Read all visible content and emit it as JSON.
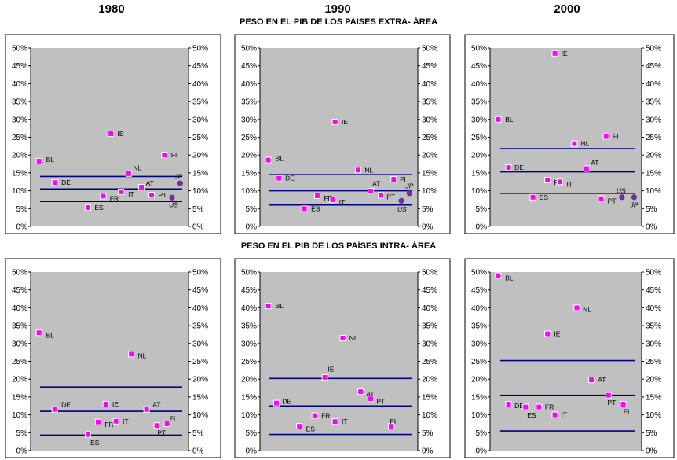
{
  "years": [
    "1980",
    "1990",
    "2000"
  ],
  "row_titles": [
    "PESO EN EL PIB DE LOS PAISES EXTRA- ÁREA",
    "PESO EN EL PIB DE LOS PAÍSES INTRA- ÁREA"
  ],
  "colors": {
    "plot_bg": "#c0c0c0",
    "marker": "#ff00ff",
    "us_jp": "#7030a0",
    "band": "#000080"
  },
  "chart_data": [
    {
      "type": "scatter",
      "row": 0,
      "col": 0,
      "ylim": [
        0,
        50
      ],
      "yticks": [
        "0%",
        "5%",
        "10%",
        "15%",
        "20%",
        "25%",
        "30%",
        "35%",
        "40%",
        "45%",
        "50%"
      ],
      "bands": [
        14,
        10.5,
        7
      ],
      "points": [
        {
          "label": "BL",
          "x": 0.08,
          "y": 18.3,
          "lx": 1.2,
          "ly": 0.2
        },
        {
          "label": "DE",
          "x": 0.7,
          "y": 12.3,
          "lx": 1.1,
          "ly": 0.0
        },
        {
          "label": "ES",
          "x": 2.0,
          "y": 5.3,
          "lx": 1.1,
          "ly": 0.0
        },
        {
          "label": "FR",
          "x": 2.6,
          "y": 8.5,
          "lx": 1.1,
          "ly": -0.3
        },
        {
          "label": "IT",
          "x": 3.3,
          "y": 9.7,
          "lx": 1.2,
          "ly": -0.3
        },
        {
          "label": "IE",
          "x": 2.9,
          "y": 26,
          "lx": 1.1,
          "ly": 0.0
        },
        {
          "label": "NL",
          "x": 3.6,
          "y": 14.8,
          "lx": 0.6,
          "ly": 0.7
        },
        {
          "label": "AT",
          "x": 4.1,
          "y": 11,
          "lx": 0.6,
          "ly": 0.5
        },
        {
          "label": "PT",
          "x": 4.5,
          "y": 8.8,
          "lx": 1.1,
          "ly": 0.0
        },
        {
          "label": "FI",
          "x": 5.0,
          "y": 20,
          "lx": 1.1,
          "ly": 0.0
        }
      ],
      "us_jp": [
        {
          "label": "JP",
          "x": 5.62,
          "y": 12.1,
          "lx": -0.2,
          "ly": 1.2
        },
        {
          "label": "US",
          "x": 5.3,
          "y": 8.1,
          "lx": 0.1,
          "ly": -1.3
        }
      ]
    },
    {
      "type": "scatter",
      "row": 0,
      "col": 1,
      "ylim": [
        0,
        50
      ],
      "yticks": [
        "0%",
        "5%",
        "10%",
        "15%",
        "20%",
        "25%",
        "30%",
        "35%",
        "40%",
        "45%",
        "50%"
      ],
      "bands": [
        14.5,
        10,
        6
      ],
      "points": [
        {
          "label": "BL",
          "x": 0.08,
          "y": 18.6,
          "lx": 1.2,
          "ly": 0.2
        },
        {
          "label": "DE",
          "x": 0.5,
          "y": 13.5,
          "lx": 1.0,
          "ly": 0.0
        },
        {
          "label": "ES",
          "x": 1.5,
          "y": 5,
          "lx": 1.1,
          "ly": 0.0
        },
        {
          "label": "FR",
          "x": 2.0,
          "y": 8.6,
          "lx": 1.1,
          "ly": -0.3
        },
        {
          "label": "IT",
          "x": 2.6,
          "y": 7.5,
          "lx": 1.1,
          "ly": -0.3
        },
        {
          "label": "IE",
          "x": 2.7,
          "y": 29.3,
          "lx": 1.1,
          "ly": 0.0
        },
        {
          "label": "NL",
          "x": 3.6,
          "y": 15.8,
          "lx": 1.1,
          "ly": 0.0
        },
        {
          "label": "AT",
          "x": 4.1,
          "y": 9.9,
          "lx": 0.0,
          "ly": 0.9
        },
        {
          "label": "PT",
          "x": 4.5,
          "y": 8.7,
          "lx": 0.9,
          "ly": -0.2
        },
        {
          "label": "FI",
          "x": 5.0,
          "y": 13.2,
          "lx": 1.0,
          "ly": 0.0
        }
      ],
      "us_jp": [
        {
          "label": "JP",
          "x": 5.62,
          "y": 9.3,
          "lx": 0.0,
          "ly": 1.3
        },
        {
          "label": "US",
          "x": 5.3,
          "y": 7.2,
          "lx": 0.0,
          "ly": -1.5
        }
      ]
    },
    {
      "type": "scatter",
      "row": 0,
      "col": 2,
      "ylim": [
        0,
        50
      ],
      "yticks": [
        "0%",
        "5%",
        "10%",
        "15%",
        "20%",
        "25%",
        "30%",
        "35%",
        "40%",
        "45%",
        "50%"
      ],
      "bands": [
        21.8,
        15.3,
        9.3
      ],
      "points": [
        {
          "label": "BL",
          "x": 0.08,
          "y": 30,
          "lx": 1.2,
          "ly": 0.0
        },
        {
          "label": "DE",
          "x": 0.5,
          "y": 16.5,
          "lx": 1.0,
          "ly": 0.0
        },
        {
          "label": "ES",
          "x": 1.5,
          "y": 8.2,
          "lx": 1.1,
          "ly": 0.0
        },
        {
          "label": "FR",
          "x": 2.1,
          "y": 13,
          "lx": 1.1,
          "ly": -0.3
        },
        {
          "label": "IT",
          "x": 2.6,
          "y": 12.5,
          "lx": 1.2,
          "ly": -0.3
        },
        {
          "label": "IE",
          "x": 2.4,
          "y": 48.5,
          "lx": 1.1,
          "ly": 0.0
        },
        {
          "label": "NL",
          "x": 3.2,
          "y": 23.2,
          "lx": 1.1,
          "ly": 0.0
        },
        {
          "label": "AT",
          "x": 3.7,
          "y": 16.2,
          "lx": 0.6,
          "ly": 0.7
        },
        {
          "label": "PT",
          "x": 4.3,
          "y": 7.8,
          "lx": 1.1,
          "ly": -0.3
        },
        {
          "label": "FI",
          "x": 4.5,
          "y": 25.2,
          "lx": 1.1,
          "ly": 0.0
        }
      ],
      "us_jp": [
        {
          "label": "US",
          "x": 5.15,
          "y": 8.2,
          "lx": -0.2,
          "ly": 1.2
        },
        {
          "label": "JP",
          "x": 5.65,
          "y": 8.2,
          "lx": 0.0,
          "ly": -1.4
        }
      ]
    },
    {
      "type": "scatter",
      "row": 1,
      "col": 0,
      "ylim": [
        0,
        50
      ],
      "yticks": [
        "0%",
        "5%",
        "10%",
        "15%",
        "20%",
        "25%",
        "30%",
        "35%",
        "40%",
        "45%",
        "50%"
      ],
      "bands": [
        17.8,
        11,
        4.3
      ],
      "points": [
        {
          "label": "BL",
          "x": 0.08,
          "y": 33,
          "lx": 1.2,
          "ly": -0.3
        },
        {
          "label": "DE",
          "x": 0.7,
          "y": 11.5,
          "lx": 1.1,
          "ly": 0.6
        },
        {
          "label": "ES",
          "x": 2.0,
          "y": 4.5,
          "lx": 0.2,
          "ly": -1.0
        },
        {
          "label": "FR",
          "x": 2.4,
          "y": 8,
          "lx": 1.1,
          "ly": -0.3
        },
        {
          "label": "IT",
          "x": 3.1,
          "y": 8.2,
          "lx": 1.1,
          "ly": 0.0
        },
        {
          "label": "IE",
          "x": 2.7,
          "y": 13,
          "lx": 1.1,
          "ly": 0.0
        },
        {
          "label": "NL",
          "x": 3.7,
          "y": 27,
          "lx": 1.1,
          "ly": -0.2
        },
        {
          "label": "AT",
          "x": 4.3,
          "y": 11.5,
          "lx": 1.0,
          "ly": 0.6
        },
        {
          "label": "PT",
          "x": 4.7,
          "y": 7,
          "lx": -0.2,
          "ly": -0.9
        },
        {
          "label": "FI",
          "x": 5.1,
          "y": 7.5,
          "lx": 0.2,
          "ly": 0.6
        }
      ],
      "us_jp": []
    },
    {
      "type": "scatter",
      "row": 1,
      "col": 1,
      "ylim": [
        0,
        50
      ],
      "yticks": [
        "0%",
        "5%",
        "10%",
        "15%",
        "20%",
        "25%",
        "30%",
        "35%",
        "40%",
        "45%",
        "50%"
      ],
      "bands": [
        20.2,
        12.5,
        4.5
      ],
      "points": [
        {
          "label": "BL",
          "x": 0.08,
          "y": 40.5,
          "lx": 1.2,
          "ly": 0.0
        },
        {
          "label": "DE",
          "x": 0.4,
          "y": 13.3,
          "lx": 0.9,
          "ly": 0.2
        },
        {
          "label": "ES",
          "x": 1.3,
          "y": 6.8,
          "lx": 1.1,
          "ly": -0.3
        },
        {
          "label": "FR",
          "x": 1.9,
          "y": 9.8,
          "lx": 1.1,
          "ly": 0.0
        },
        {
          "label": "IT",
          "x": 2.7,
          "y": 8.1,
          "lx": 1.1,
          "ly": 0.0
        },
        {
          "label": "IE",
          "x": 2.3,
          "y": 20.5,
          "lx": 0.3,
          "ly": 1.0
        },
        {
          "label": "NL",
          "x": 3.0,
          "y": 31.5,
          "lx": 1.1,
          "ly": 0.0
        },
        {
          "label": "AT",
          "x": 3.7,
          "y": 16.5,
          "lx": 0.9,
          "ly": -0.3
        },
        {
          "label": "PT",
          "x": 4.1,
          "y": 14.5,
          "lx": 0.9,
          "ly": -0.3
        },
        {
          "label": "FI",
          "x": 4.9,
          "y": 6.8,
          "lx": -0.6,
          "ly": 0.6
        }
      ],
      "us_jp": []
    },
    {
      "type": "scatter",
      "row": 1,
      "col": 2,
      "ylim": [
        0,
        50
      ],
      "yticks": [
        "0%",
        "5%",
        "10%",
        "15%",
        "20%",
        "25%",
        "30%",
        "35%",
        "40%",
        "45%",
        "50%"
      ],
      "bands": [
        25.2,
        15.5,
        5.5
      ],
      "points": [
        {
          "label": "BL",
          "x": 0.08,
          "y": 49,
          "lx": 1.2,
          "ly": -0.3
        },
        {
          "label": "DE",
          "x": 0.5,
          "y": 13,
          "lx": 1.0,
          "ly": -0.2
        },
        {
          "label": "ES",
          "x": 1.2,
          "y": 12.2,
          "lx": 0.0,
          "ly": -1.0
        },
        {
          "label": "FR",
          "x": 1.75,
          "y": 12.2,
          "lx": 1.0,
          "ly": 0.0
        },
        {
          "label": "IT",
          "x": 2.4,
          "y": 10,
          "lx": 1.1,
          "ly": 0.0
        },
        {
          "label": "IE",
          "x": 2.1,
          "y": 32.7,
          "lx": 1.1,
          "ly": 0.0
        },
        {
          "label": "NL",
          "x": 3.3,
          "y": 40,
          "lx": 1.0,
          "ly": -0.2
        },
        {
          "label": "AT",
          "x": 3.9,
          "y": 19.8,
          "lx": 1.1,
          "ly": 0.0
        },
        {
          "label": "PT",
          "x": 4.6,
          "y": 15.5,
          "lx": -0.6,
          "ly": -0.9
        },
        {
          "label": "FI",
          "x": 5.2,
          "y": 13,
          "lx": -0.3,
          "ly": -0.9
        }
      ],
      "us_jp": []
    }
  ]
}
